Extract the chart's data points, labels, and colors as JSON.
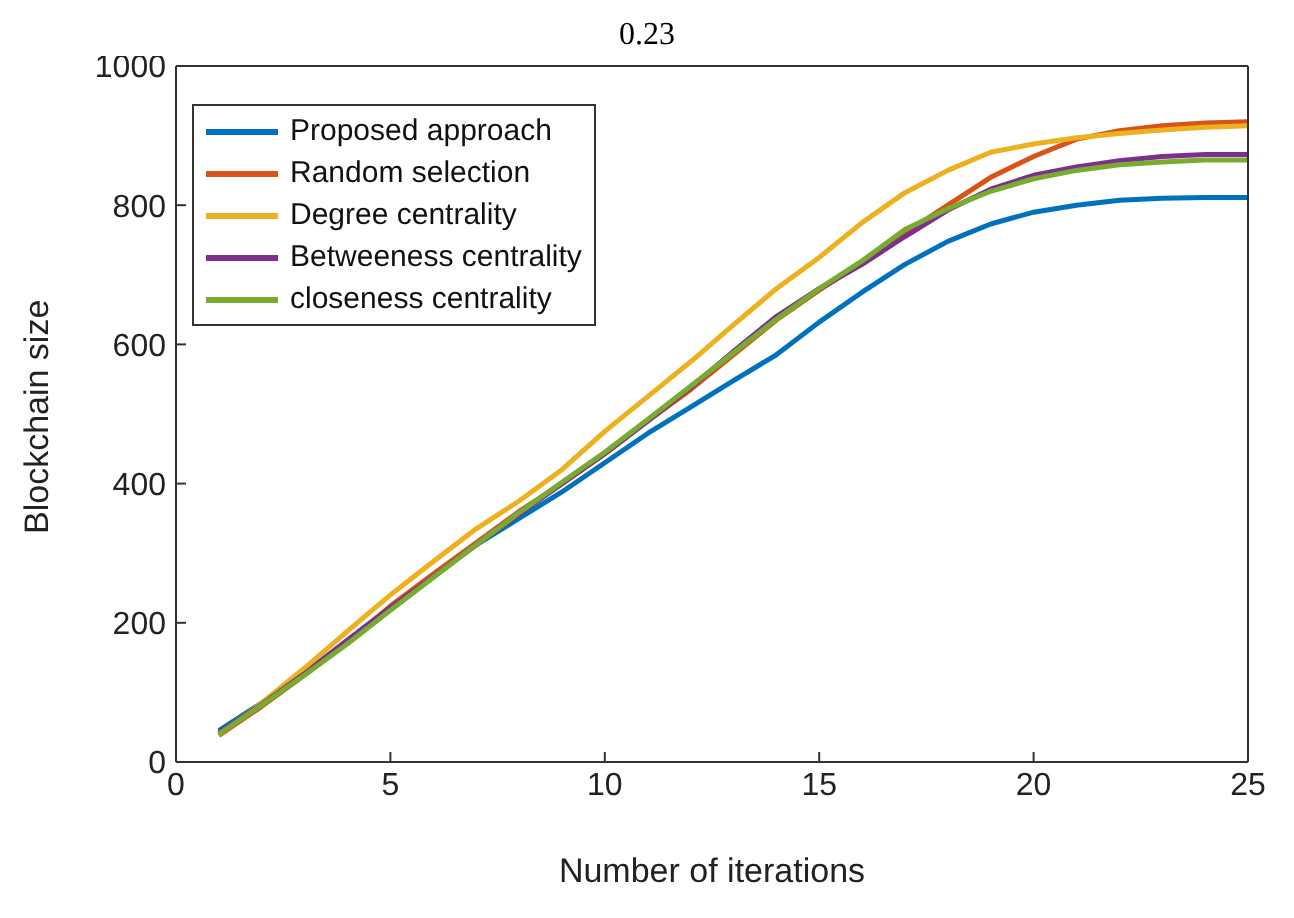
{
  "chart_data": {
    "type": "line",
    "title": "0.23",
    "xlabel": "Number of iterations",
    "ylabel": "Blockchain size",
    "x": [
      1,
      2,
      3,
      4,
      5,
      6,
      7,
      8,
      9,
      10,
      11,
      12,
      13,
      14,
      15,
      16,
      17,
      18,
      19,
      20,
      21,
      22,
      23,
      24,
      25
    ],
    "series": [
      {
        "name": "Proposed approach",
        "color": "#0072bd",
        "values": [
          45,
          85,
          128,
          175,
          222,
          268,
          312,
          350,
          388,
          430,
          472,
          510,
          548,
          585,
          632,
          675,
          715,
          748,
          773,
          790,
          800,
          807,
          810,
          811,
          811
        ]
      },
      {
        "name": "Random selection",
        "color": "#d95319",
        "values": [
          38,
          80,
          125,
          172,
          224,
          270,
          315,
          360,
          400,
          443,
          490,
          535,
          585,
          635,
          678,
          718,
          760,
          800,
          840,
          870,
          895,
          907,
          914,
          918,
          920
        ]
      },
      {
        "name": "Degree centrality",
        "color": "#edb120",
        "values": [
          40,
          85,
          135,
          188,
          240,
          288,
          335,
          375,
          420,
          475,
          525,
          575,
          628,
          680,
          725,
          775,
          818,
          850,
          876,
          888,
          897,
          903,
          908,
          912,
          914
        ]
      },
      {
        "name": "Betweeness centrality",
        "color": "#7e2f8e",
        "values": [
          42,
          83,
          127,
          175,
          222,
          266,
          312,
          356,
          400,
          443,
          490,
          538,
          590,
          640,
          680,
          715,
          755,
          793,
          823,
          843,
          855,
          864,
          870,
          873,
          873
        ]
      },
      {
        "name": "closeness centrality",
        "color": "#77ac30",
        "values": [
          40,
          82,
          125,
          170,
          218,
          265,
          312,
          358,
          402,
          445,
          492,
          540,
          588,
          636,
          680,
          720,
          765,
          795,
          820,
          838,
          850,
          858,
          862,
          865,
          865
        ]
      }
    ],
    "xlim": [
      0,
      25
    ],
    "xticks": [
      0,
      5,
      10,
      15,
      20,
      25
    ],
    "ylim": [
      0,
      1000
    ],
    "yticks": [
      0,
      200,
      400,
      600,
      800,
      1000
    ],
    "grid": false,
    "legend": "top left",
    "marker": "none",
    "line_style": "solid"
  }
}
